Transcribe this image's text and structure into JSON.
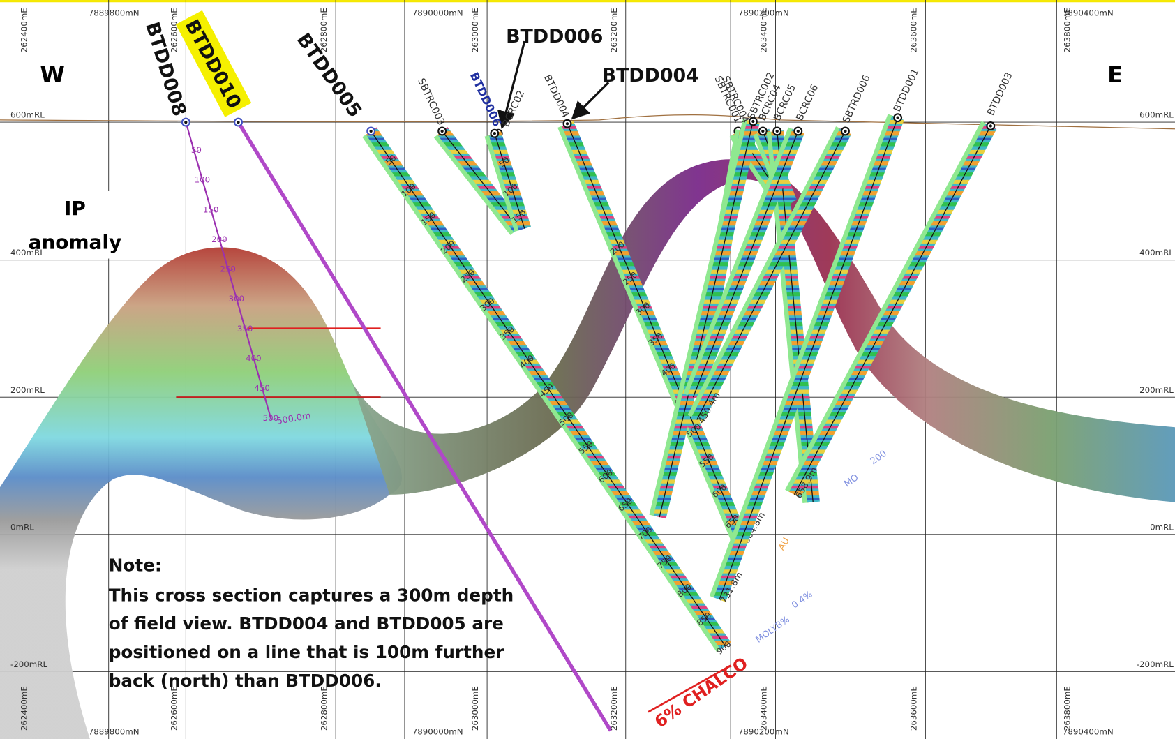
{
  "labels": {
    "west": "W",
    "east": "E",
    "ip_anomaly": [
      "IP",
      "anomaly"
    ],
    "chalco": "6% CHALCO"
  },
  "grid": {
    "elevations": [
      "600mRL",
      "400mRL",
      "200mRL",
      "0mRL",
      "-200mRL"
    ],
    "northings": [
      "7889800mN",
      "7890000mN",
      "7890200mN",
      "7890400mN"
    ],
    "eastings": [
      "262400mE",
      "262600mE",
      "262800mE",
      "263000mE",
      "263200mE",
      "263400mE",
      "263600mE",
      "263800mE"
    ]
  },
  "drillholes": [
    {
      "name": "BTDD008",
      "depth_ticks": [
        50,
        100,
        150,
        200,
        250,
        300,
        350,
        400,
        450,
        500
      ],
      "end_label": "500.0m"
    },
    {
      "name": "BTDD010"
    },
    {
      "name": "BTDD005",
      "depth_ticks": [
        50,
        100,
        150,
        200,
        250,
        300,
        350,
        400,
        450,
        500,
        550,
        600,
        650,
        700,
        750,
        800,
        850,
        900
      ]
    },
    {
      "name": "SBTRC003"
    },
    {
      "name": "BTDD006"
    },
    {
      "name": "BCRC02",
      "depth_ticks": [
        50,
        100,
        150
      ]
    },
    {
      "name": "BTDD004",
      "depth_ticks": [
        200,
        250,
        300,
        350,
        400,
        450,
        500,
        550,
        600,
        650
      ],
      "end_label": "684.8m"
    },
    {
      "name": "SBTRC001"
    },
    {
      "name": "SBTRC004"
    },
    {
      "name": "SBTRC002"
    },
    {
      "name": "BCRC04"
    },
    {
      "name": "BCRC05"
    },
    {
      "name": "BCRC06"
    },
    {
      "name": "SBTRD006",
      "end_label": "450.4m"
    },
    {
      "name": "BTDD001",
      "end_label": "731.8m"
    },
    {
      "name": "BTDD003",
      "end_label": "658.9m"
    }
  ],
  "annotations": {
    "au": "AU",
    "mo": "MO",
    "mo_scale": "200",
    "molyb": "MOLYB%",
    "molyb_scale": "0.4%"
  },
  "note": {
    "title": "Note:",
    "lines": [
      "This cross section captures a 300m depth",
      "of field view.  BTDD004 and BTDD005 are",
      "positioned on a line that is 100m further",
      "back (north) than BTDD006."
    ]
  }
}
